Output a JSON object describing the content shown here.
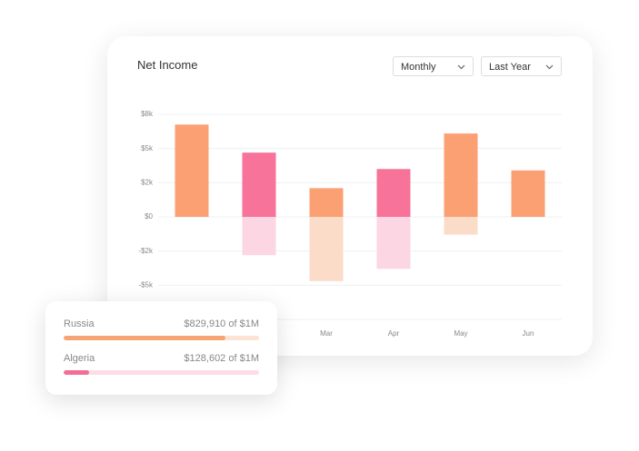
{
  "chart_data": {
    "type": "bar",
    "title": "Net Income",
    "categories": [
      null,
      null,
      "Mar",
      "Apr",
      "May",
      "Jun"
    ],
    "series": [
      {
        "color": "#fba072",
        "colors": [
          "#fba072",
          "#f7739a",
          "#fba072",
          "#f7739a",
          "#fba072",
          "#fba072"
        ],
        "values": [
          6.75,
          4.7,
          2.1,
          3.5,
          6.1,
          3.4
        ]
      },
      {
        "color": "#fbdcc8",
        "colors": [
          "#fbdcc8",
          "#fcd6e2",
          "#fbdcc8",
          "#fcd6e2",
          "#fbdcc8",
          "#fbdcc8"
        ],
        "values": [
          null,
          -2.8,
          -4.7,
          -3.8,
          -1.3,
          null
        ]
      }
    ],
    "ylim": [
      -7.5,
      7.5
    ],
    "yticks": [
      {
        "value": 7.5,
        "label": "$8k"
      },
      {
        "value": 5,
        "label": "$5k"
      },
      {
        "value": 2.5,
        "label": "$2k"
      },
      {
        "value": 0,
        "label": "$0"
      },
      {
        "value": -2.5,
        "label": "-$2k"
      },
      {
        "value": -5,
        "label": "-$5k"
      },
      {
        "value": -7.5,
        "label": ""
      }
    ],
    "grid": true
  },
  "dropdowns": [
    "Monthly",
    "Last Year"
  ],
  "progress": [
    {
      "label": "Russia",
      "value": 829910,
      "value_label": "$829,910 of $1M",
      "max": 1000000,
      "color": "#f5a474",
      "track": "#fde3d3"
    },
    {
      "label": "Algeria",
      "value": 128602,
      "value_label": "$128,602 of $1M",
      "max": 1000000,
      "color": "#f46d95",
      "track": "#fcdde7"
    }
  ]
}
